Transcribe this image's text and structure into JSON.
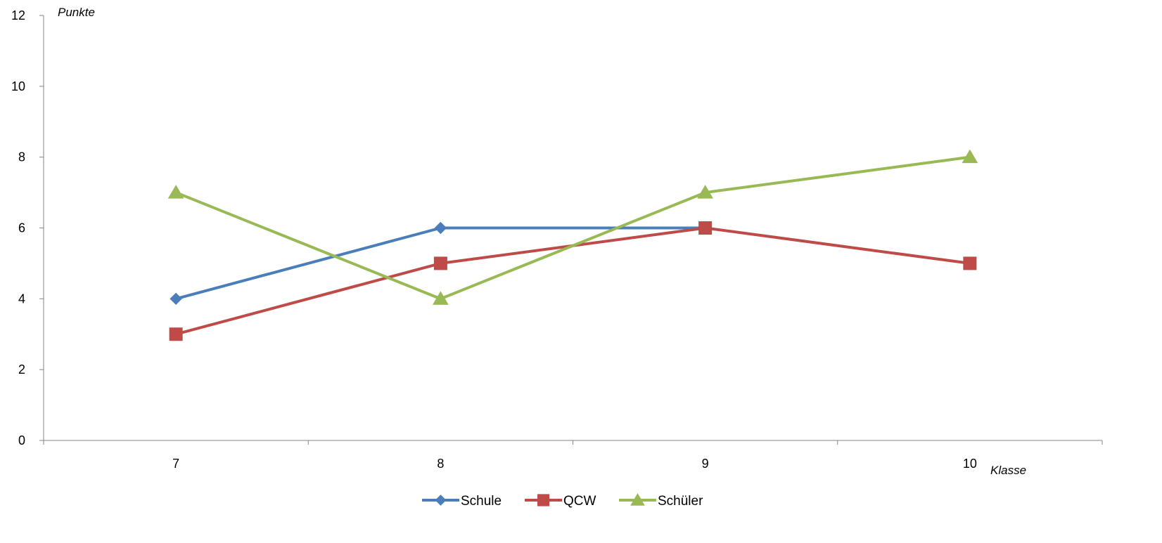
{
  "chart_data": {
    "type": "line",
    "title": "",
    "xlabel": "Klasse",
    "ylabel": "Punkte",
    "categories": [
      "7",
      "8",
      "9",
      "10"
    ],
    "ylim": [
      0,
      12
    ],
    "yticks": [
      "0",
      "2",
      "4",
      "6",
      "8",
      "10",
      "12"
    ],
    "grid": false,
    "legend_position": "bottom",
    "series": [
      {
        "name": "Schule",
        "values": [
          4,
          6,
          6,
          null
        ],
        "color": "#4A7EBB",
        "marker": "diamond"
      },
      {
        "name": "QCW",
        "values": [
          3,
          5,
          6,
          5
        ],
        "color": "#BE4B48",
        "marker": "square"
      },
      {
        "name": "Schüler",
        "values": [
          7,
          4,
          7,
          8
        ],
        "color": "#98B954",
        "marker": "triangle"
      }
    ]
  }
}
